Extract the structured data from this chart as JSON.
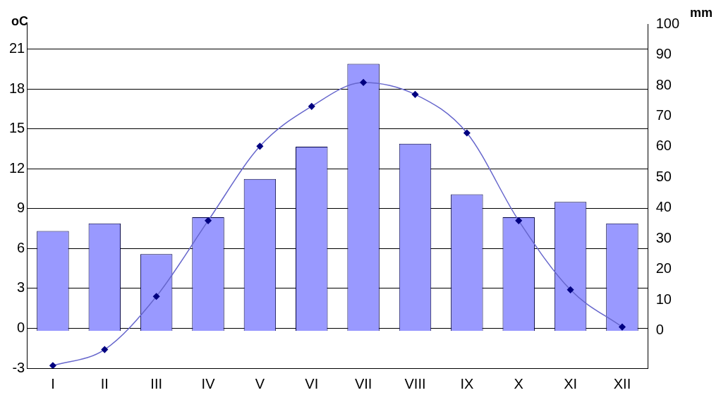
{
  "chart_data": {
    "type": "bar",
    "ylabel": "oC",
    "y2label": "mm",
    "categories": [
      "I",
      "II",
      "III",
      "IV",
      "V",
      "VI",
      "VII",
      "VIII",
      "IX",
      "X",
      "XI",
      "XII"
    ],
    "series": [
      {
        "axis": "y2",
        "color": "#9999ff",
        "values": [
          32.5,
          35,
          25,
          37,
          49.5,
          60,
          87,
          61,
          44.5,
          37,
          42,
          35
        ]
      },
      {
        "type": "line",
        "axis": "y",
        "color": "#6666cc",
        "marker": "diamond",
        "values": [
          -2.8,
          -1.6,
          2.4,
          8.1,
          13.7,
          16.7,
          18.5,
          17.6,
          14.7,
          8.1,
          2.9,
          0.1
        ]
      }
    ],
    "ylim": [
      -3,
      22.9
    ],
    "yticks": [
      -3,
      0,
      3,
      6,
      9,
      12,
      15,
      18,
      21
    ],
    "y2lim": [
      -12.2,
      100
    ],
    "y2ticks": [
      0,
      10,
      20,
      30,
      40,
      50,
      60,
      70,
      80,
      90,
      100
    ],
    "grid": "y",
    "legend": false
  }
}
